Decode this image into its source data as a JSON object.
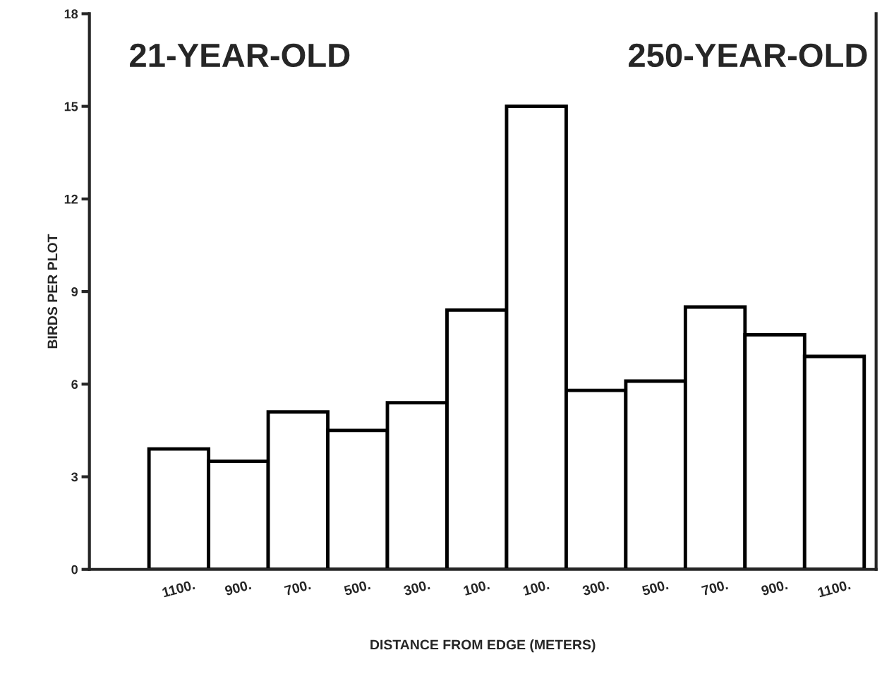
{
  "chart_data": {
    "type": "bar",
    "categories": [
      "1100.",
      "900.",
      "700.",
      "500.",
      "300.",
      "100.",
      "100.",
      "300.",
      "500.",
      "700.",
      "900.",
      "1100."
    ],
    "values": [
      3.9,
      3.5,
      5.1,
      4.5,
      5.4,
      8.4,
      15.0,
      5.8,
      6.1,
      8.5,
      7.6,
      6.9
    ],
    "color": "#ffffff",
    "xlabel": "DISTANCE FROM EDGE (METERS)",
    "ylabel": "BIRDS PER PLOT",
    "ylim": [
      0,
      18
    ],
    "yticks": [
      0,
      3,
      6,
      9,
      12,
      15,
      18
    ],
    "annotations": [
      "21-YEAR-OLD",
      "250-YEAR-OLD"
    ],
    "grid": false,
    "legend": false
  }
}
